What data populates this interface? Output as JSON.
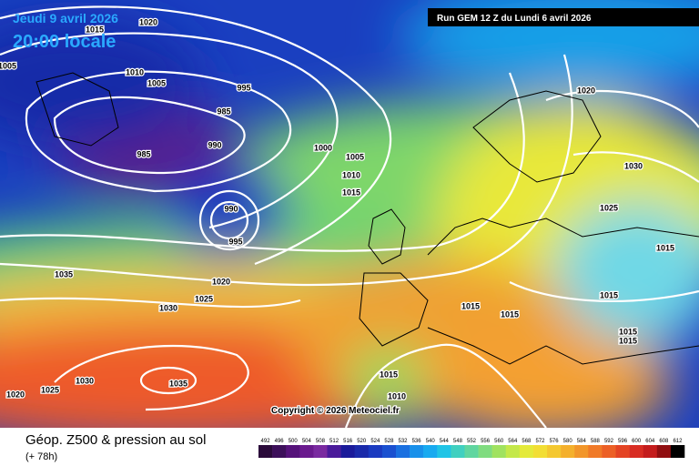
{
  "header": {
    "date": "Jeudi 9 avril 2026",
    "time": "20:00 locale",
    "run": "Run GEM 12 Z du Lundi 6 avril 2026"
  },
  "copyright": "Copyright © 2026 Meteociel.fr",
  "footer": {
    "title": "Géop. Z500 & pression au sol",
    "lead": "(+ 78h)"
  },
  "isobar_labels": [
    "1020",
    "1015",
    "1005",
    "1010",
    "1005",
    "995",
    "985",
    "990",
    "985",
    "1000",
    "1005",
    "1010",
    "1015",
    "990",
    "995",
    "1020",
    "1030",
    "1025",
    "1015",
    "1035",
    "1020",
    "1025",
    "1030",
    "1015",
    "1015",
    "1015",
    "1015",
    "1015",
    "1030",
    "1035",
    "1025",
    "1020",
    "1015",
    "1010"
  ],
  "colorbar": {
    "labels": [
      "492",
      "496",
      "500",
      "504",
      "508",
      "512",
      "516",
      "520",
      "524",
      "528",
      "532",
      "536",
      "540",
      "544",
      "548",
      "552",
      "556",
      "560",
      "564",
      "568",
      "572",
      "576",
      "580",
      "584",
      "588",
      "592",
      "596",
      "600",
      "604",
      "608",
      "612"
    ]
  }
}
